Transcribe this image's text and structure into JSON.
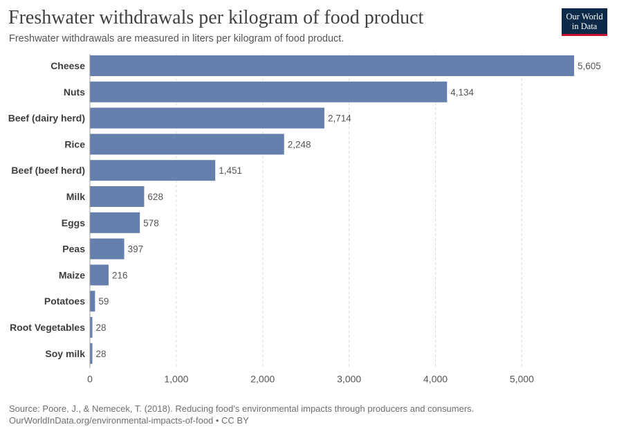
{
  "header": {
    "title": "Freshwater withdrawals per kilogram of food product",
    "subtitle": "Freshwater withdrawals are measured in liters per kilogram of food product.",
    "logo_line1": "Our World",
    "logo_line2": "in Data"
  },
  "footer": {
    "source": "Source: Poore, J., & Nemecek, T. (2018). Reducing food’s environmental impacts through producers and consumers.",
    "url": "OurWorldInData.org/environmental-impacts-of-food • CC BY"
  },
  "colors": {
    "bar": "#6680ad",
    "grid": "#dddddd"
  },
  "chart_data": {
    "type": "bar",
    "orientation": "horizontal",
    "categories": [
      "Cheese",
      "Nuts",
      "Beef (dairy herd)",
      "Rice",
      "Beef (beef herd)",
      "Milk",
      "Eggs",
      "Peas",
      "Maize",
      "Potatoes",
      "Root Vegetables",
      "Soy milk"
    ],
    "values": [
      5605,
      4134,
      2714,
      2248,
      1451,
      628,
      578,
      397,
      216,
      59,
      28,
      28
    ],
    "value_labels": [
      "5,605",
      "4,134",
      "2,714",
      "2,248",
      "1,451",
      "628",
      "578",
      "397",
      "216",
      "59",
      "28",
      "28"
    ],
    "xlim": [
      0,
      5605
    ],
    "xticks": [
      0,
      1000,
      2000,
      3000,
      4000,
      5000
    ],
    "xtick_labels": [
      "0",
      "1,000",
      "2,000",
      "3,000",
      "4,000",
      "5,000"
    ],
    "grid": true
  }
}
